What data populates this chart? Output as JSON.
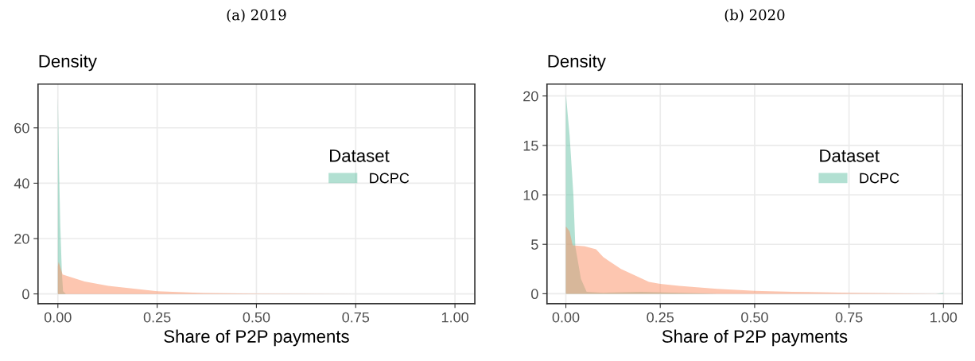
{
  "chart_data": [
    {
      "type": "area",
      "title": "(a) 2019",
      "ylabel": "Density",
      "xlabel": "Share of P2P payments",
      "legend_title": "Dataset",
      "legend": "right",
      "grid": true,
      "xlim": [
        -0.05,
        1.05
      ],
      "xticks": [
        {
          "value": 0,
          "label": "0.00"
        },
        {
          "value": 0.25,
          "label": "0.25"
        },
        {
          "value": 0.5,
          "label": "0.50"
        },
        {
          "value": 0.75,
          "label": "0.75"
        },
        {
          "value": 1,
          "label": "1.00"
        }
      ],
      "ylim": [
        -3.5,
        75.8
      ],
      "yticks": [
        0,
        20,
        40,
        60
      ],
      "series": [
        {
          "name": "DCPC",
          "color": "#66c2a5",
          "x": [
            0,
            0.003,
            0.006,
            0.01,
            0.013,
            0.02,
            1.0
          ],
          "values": [
            71,
            45,
            25,
            8,
            1,
            0,
            0
          ]
        },
        {
          "color": "#fc8d62",
          "x": [
            0,
            0.002,
            0.012,
            0.067,
            0.127,
            0.25,
            0.37,
            0.5,
            0.75,
            1.0
          ],
          "values": [
            10,
            11.5,
            7,
            4.5,
            2.9,
            1.0,
            0.3,
            0.1,
            0,
            0
          ]
        }
      ]
    },
    {
      "type": "area",
      "title": "(b) 2020",
      "ylabel": "Density",
      "xlabel": "Share of P2P payments",
      "legend_title": "Dataset",
      "legend": "right",
      "grid": true,
      "xlim": [
        -0.05,
        1.05
      ],
      "xticks": [
        {
          "value": 0,
          "label": "0.00"
        },
        {
          "value": 0.25,
          "label": "0.25"
        },
        {
          "value": 0.5,
          "label": "0.50"
        },
        {
          "value": 0.75,
          "label": "0.75"
        },
        {
          "value": 1,
          "label": "1.00"
        }
      ],
      "ylim": [
        -1.0,
        21.2
      ],
      "yticks": [
        0,
        5,
        10,
        15,
        20
      ],
      "series": [
        {
          "name": "DCPC",
          "color": "#66c2a5",
          "x": [
            0,
            0.01,
            0.02,
            0.025,
            0.04,
            0.055,
            0.1,
            0.2,
            0.3,
            0.4,
            0.6,
            0.98,
            1.0
          ],
          "values": [
            20.2,
            16,
            10,
            4.8,
            1.5,
            0.2,
            0.1,
            0.2,
            0.1,
            0,
            0,
            0,
            0.1
          ]
        },
        {
          "color": "#fc8d62",
          "x": [
            0,
            0.01,
            0.018,
            0.05,
            0.08,
            0.099,
            0.146,
            0.186,
            0.22,
            0.25,
            0.3,
            0.4,
            0.5,
            0.6,
            0.75,
            1.0
          ],
          "values": [
            6.8,
            6.3,
            4.9,
            4.8,
            4.5,
            3.7,
            2.5,
            1.8,
            1.2,
            1.0,
            0.8,
            0.5,
            0.3,
            0.2,
            0.1,
            0
          ]
        }
      ]
    }
  ]
}
